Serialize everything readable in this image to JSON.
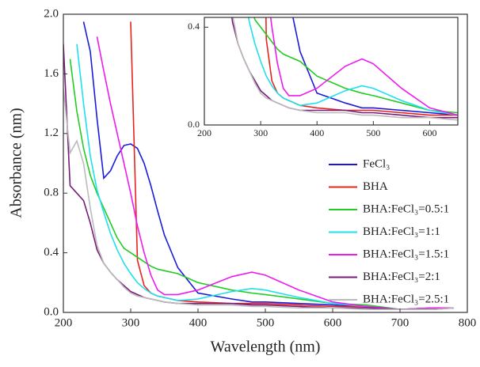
{
  "chart_data": {
    "type": "line",
    "x_label": "Wavelength (nm)",
    "y_label": "Absorbance (nm)",
    "x": [
      200,
      210,
      220,
      230,
      240,
      250,
      260,
      270,
      280,
      290,
      300,
      310,
      320,
      330,
      340,
      350,
      370,
      400,
      450,
      480,
      500,
      550,
      600,
      650,
      700,
      750,
      780
    ],
    "series": [
      {
        "name": "FeCl₃",
        "color": "#1a1adc",
        "values": [
          null,
          null,
          null,
          1.95,
          1.75,
          1.3,
          0.9,
          0.95,
          1.05,
          1.12,
          1.13,
          1.1,
          1.0,
          0.85,
          0.68,
          0.52,
          0.3,
          0.13,
          0.09,
          0.07,
          0.07,
          0.06,
          0.05,
          0.04,
          0.02,
          0.03,
          0.03
        ]
      },
      {
        "name": "BHA",
        "color": "#e8231e",
        "values": [
          null,
          null,
          null,
          null,
          null,
          null,
          null,
          null,
          null,
          null,
          1.95,
          0.35,
          0.18,
          0.13,
          0.11,
          0.1,
          0.08,
          0.07,
          0.06,
          0.06,
          0.06,
          0.05,
          0.04,
          0.04,
          0.02,
          0.03,
          0.03
        ]
      },
      {
        "name": "BHA:FeCl₃=0.5:1",
        "color": "#22cc22",
        "values": [
          null,
          1.7,
          1.35,
          1.1,
          0.92,
          0.8,
          0.7,
          0.6,
          0.5,
          0.43,
          0.4,
          0.37,
          0.34,
          0.31,
          0.29,
          0.28,
          0.26,
          0.2,
          0.15,
          0.13,
          0.12,
          0.09,
          0.06,
          0.05,
          0.02,
          0.03,
          0.03
        ]
      },
      {
        "name": "BHA:FeCl₃=1:1",
        "color": "#1ee0ee",
        "values": [
          null,
          null,
          1.8,
          1.4,
          1.05,
          0.82,
          0.67,
          0.53,
          0.42,
          0.33,
          0.26,
          0.2,
          0.16,
          0.13,
          0.11,
          0.1,
          0.08,
          0.09,
          0.14,
          0.16,
          0.15,
          0.1,
          0.06,
          0.04,
          0.02,
          0.03,
          0.03
        ]
      },
      {
        "name": "BHA:FeCl₃=1.5:1",
        "color": "#ee1aee",
        "values": [
          null,
          null,
          null,
          null,
          null,
          1.85,
          1.62,
          1.4,
          1.2,
          1.0,
          0.8,
          0.58,
          0.4,
          0.25,
          0.15,
          0.12,
          0.12,
          0.15,
          0.24,
          0.27,
          0.25,
          0.15,
          0.07,
          0.04,
          0.02,
          0.03,
          0.03
        ]
      },
      {
        "name": "BHA:FeCl₃=2:1",
        "color": "#7a1a7a",
        "values": [
          1.8,
          0.85,
          0.8,
          0.75,
          0.6,
          0.42,
          0.33,
          0.27,
          0.22,
          0.18,
          0.14,
          0.12,
          0.1,
          0.09,
          0.08,
          0.07,
          0.06,
          0.06,
          0.06,
          0.05,
          0.05,
          0.04,
          0.03,
          0.03,
          0.02,
          0.02,
          0.03
        ]
      },
      {
        "name": "BHA:FeCl₃=2.5:1",
        "color": "#bbbbbb",
        "values": [
          1.5,
          1.07,
          1.15,
          1.0,
          0.7,
          0.45,
          0.33,
          0.27,
          0.22,
          0.17,
          0.13,
          0.11,
          0.1,
          0.09,
          0.08,
          0.07,
          0.06,
          0.05,
          0.05,
          0.04,
          0.04,
          0.03,
          0.03,
          0.02,
          0.02,
          0.02,
          0.03
        ]
      }
    ],
    "xlim": [
      200,
      800
    ],
    "xticks": [
      200,
      300,
      400,
      500,
      600,
      700,
      800
    ],
    "ylim": [
      0,
      2
    ],
    "yticks": [
      {
        "value": 0,
        "label": "0.0"
      },
      0.4,
      0.8,
      1.2,
      1.6,
      {
        "value": 2,
        "label": "2.0"
      }
    ],
    "legend": "lower right",
    "inset": {
      "xlim": [
        200,
        650
      ],
      "xticks": [
        200,
        300,
        400,
        500,
        600
      ],
      "ylim": [
        0,
        0.44
      ],
      "yticks": [
        {
          "value": 0,
          "label": "0.0"
        },
        0.4
      ]
    }
  }
}
